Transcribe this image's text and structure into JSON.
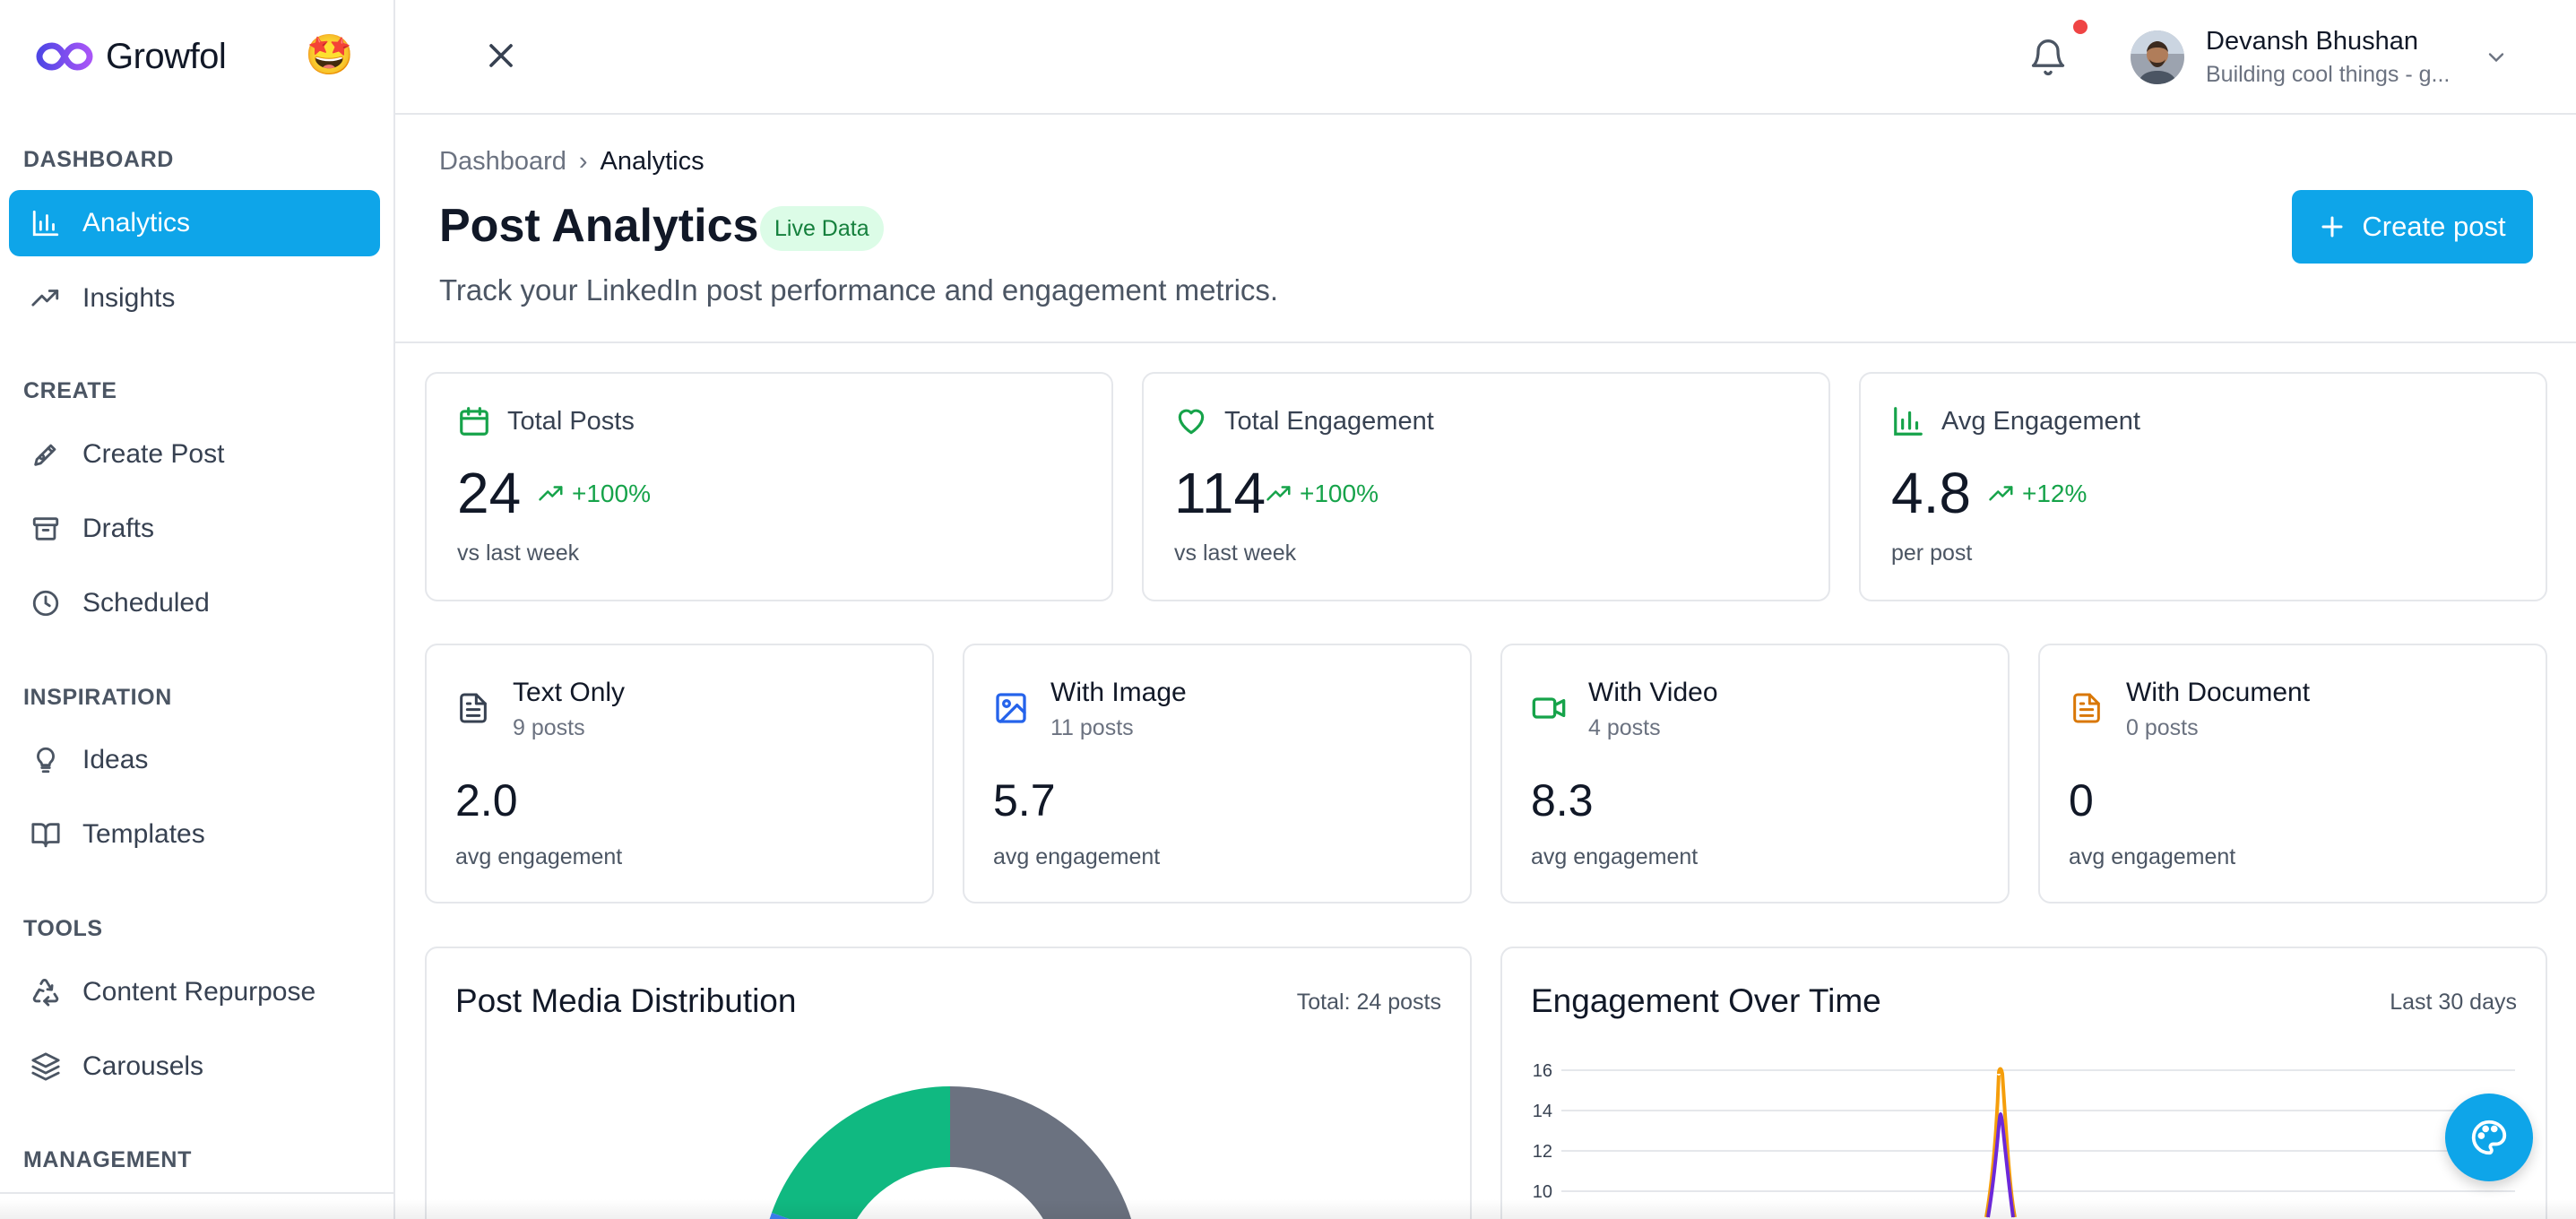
{
  "app": {
    "name": "Growfol",
    "emoji": "🤩"
  },
  "sidebar": {
    "sections": {
      "dashboard": "DASHBOARD",
      "create": "CREATE",
      "inspiration": "INSPIRATION",
      "tools": "TOOLS",
      "management": "MANAGEMENT"
    },
    "items": [
      {
        "label": "Analytics",
        "icon": "bar-chart-icon",
        "active": true
      },
      {
        "label": "Insights",
        "icon": "trending-up-icon"
      },
      {
        "label": "Create Post",
        "icon": "pen-tool-icon"
      },
      {
        "label": "Drafts",
        "icon": "archive-icon"
      },
      {
        "label": "Scheduled",
        "icon": "clock-icon"
      },
      {
        "label": "Ideas",
        "icon": "lightbulb-icon"
      },
      {
        "label": "Templates",
        "icon": "book-open-icon"
      },
      {
        "label": "Content Repurpose",
        "icon": "recycle-icon"
      },
      {
        "label": "Carousels",
        "icon": "layers-icon"
      }
    ]
  },
  "topbar": {
    "close_icon": "close-icon",
    "notifications_icon": "bell-icon",
    "user": {
      "name": "Devansh Bhushan",
      "subtitle": "Building cool things - g..."
    }
  },
  "header": {
    "breadcrumb": {
      "root": "Dashboard",
      "separator": "›",
      "current": "Analytics"
    },
    "title": "Post Analytics",
    "badge": "Live Data",
    "description": "Track your LinkedIn post performance and engagement metrics.",
    "create_button": "Create post"
  },
  "stats": [
    {
      "label": "Total Posts",
      "value": "24",
      "trend": "+100%",
      "note": "vs last week",
      "icon": "calendar-icon"
    },
    {
      "label": "Total Engagement",
      "value": "114",
      "trend": "+100%",
      "note": "vs last week",
      "icon": "heart-icon"
    },
    {
      "label": "Avg Engagement",
      "value": "4.8",
      "trend": "+12%",
      "note": "per post",
      "icon": "bar-chart-icon"
    }
  ],
  "media_types": [
    {
      "title": "Text Only",
      "posts": "9 posts",
      "value": "2.0",
      "note": "avg engagement",
      "icon": "file-text-icon"
    },
    {
      "title": "With Image",
      "posts": "11 posts",
      "value": "5.7",
      "note": "avg engagement",
      "icon": "image-icon"
    },
    {
      "title": "With Video",
      "posts": "4 posts",
      "value": "8.3",
      "note": "avg engagement",
      "icon": "video-icon"
    },
    {
      "title": "With Document",
      "posts": "0 posts",
      "value": "0",
      "note": "avg engagement",
      "icon": "document-icon"
    }
  ],
  "panels": {
    "distribution": {
      "title": "Post Media Distribution",
      "meta": "Total: 24 posts"
    },
    "engagement": {
      "title": "Engagement Over Time",
      "meta": "Last 30 days",
      "y_ticks": [
        "16",
        "14",
        "12",
        "10"
      ]
    }
  },
  "colors": {
    "accent": "#0ea5e9",
    "success": "#16a34a",
    "donut_text": "#6b7280",
    "donut_image": "#10b981",
    "donut_video": "#3b82f6",
    "line_orange": "#f59e0b",
    "line_purple": "#6d28d9"
  },
  "fab_icon": "palette-icon"
}
